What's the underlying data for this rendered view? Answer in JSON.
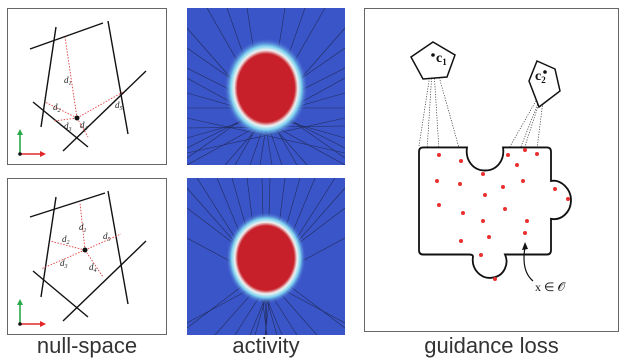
{
  "captions": {
    "null_space": "null-space",
    "activity": "activity",
    "guidance_loss": "guidance loss"
  },
  "null_space_top": {
    "distances": [
      {
        "main": "d",
        "sub": "1"
      },
      {
        "main": "d",
        "sub": "2"
      },
      {
        "main": "d",
        "sub": "3"
      },
      {
        "main": "d",
        "sub": "4"
      },
      {
        "main": "d",
        "sub": "5"
      }
    ]
  },
  "null_space_bottom": {
    "distances": [
      {
        "main": "d",
        "sub": "1"
      },
      {
        "main": "d",
        "sub": "2"
      },
      {
        "main": "d",
        "sub": "3"
      },
      {
        "main": "d",
        "sub": "4"
      },
      {
        "main": "d",
        "sub": "5"
      }
    ]
  },
  "guidance": {
    "cameras": [
      {
        "main": "c",
        "sub": "1"
      },
      {
        "main": "c",
        "sub": "2"
      }
    ],
    "point_label": "x ∈ 𝒪"
  },
  "colors": {
    "activity_background": "#3a55c8",
    "activity_core": "#c8202a",
    "axis_x": "#e0282a",
    "axis_y": "#2aa84a",
    "distance_lines": "#e04040",
    "sample_points": "#e83030"
  }
}
